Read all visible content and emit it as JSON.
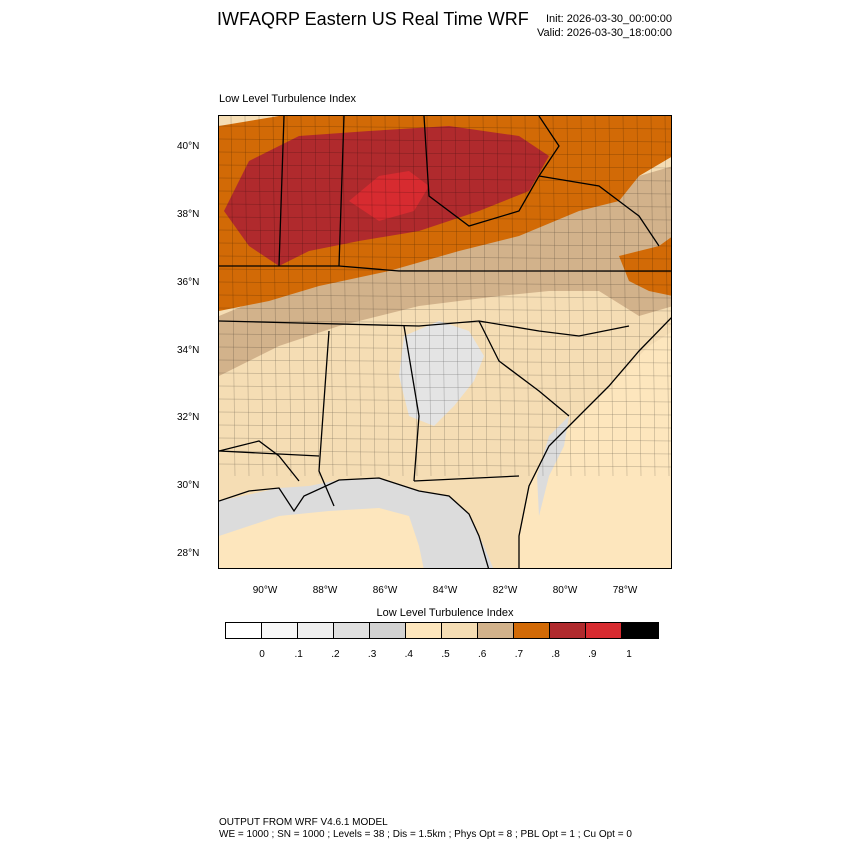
{
  "header": {
    "title": "IWFAQRP Eastern US Real Time WRF",
    "init": "Init: 2026-03-30_00:00:00",
    "valid": "Valid: 2026-03-30_18:00:00"
  },
  "plot_label": "Low Level Turbulence Index",
  "map": {
    "lat_ticks": [
      "40°N",
      "38°N",
      "36°N",
      "34°N",
      "32°N",
      "30°N",
      "28°N"
    ],
    "lon_ticks": [
      "90°W",
      "88°W",
      "86°W",
      "84°W",
      "82°W",
      "80°W",
      "78°W"
    ],
    "colors": {
      "ocean_gray": "#dcdcdc",
      "light_gray": "#e4e4e4",
      "pale_tan": "#fde6bd",
      "tan": "#f5ddb4",
      "brown_tan": "#d2b28b",
      "orange": "#d26a06",
      "red_brown": "#b02a2d",
      "red": "#d72b30",
      "black": "#000000"
    }
  },
  "colorbar": {
    "title": "Low Level Turbulence Index",
    "colors": [
      "#ffffff",
      "#f7f7f7",
      "#efefef",
      "#e0e0e0",
      "#d2d2d2",
      "#fde6bd",
      "#f5ddb4",
      "#d2b28b",
      "#d26a06",
      "#b02a2d",
      "#d72b30",
      "#000000"
    ],
    "labels": [
      "0",
      ".1",
      ".2",
      ".3",
      ".4",
      ".5",
      ".6",
      ".7",
      ".8",
      ".9",
      "1"
    ]
  },
  "footer": {
    "line1": "OUTPUT FROM WRF V4.6.1 MODEL",
    "line2": "WE = 1000 ; SN = 1000 ; Levels = 38 ; Dis = 1.5km ; Phys Opt = 8 ; PBL Opt = 1 ; Cu Opt = 0"
  }
}
